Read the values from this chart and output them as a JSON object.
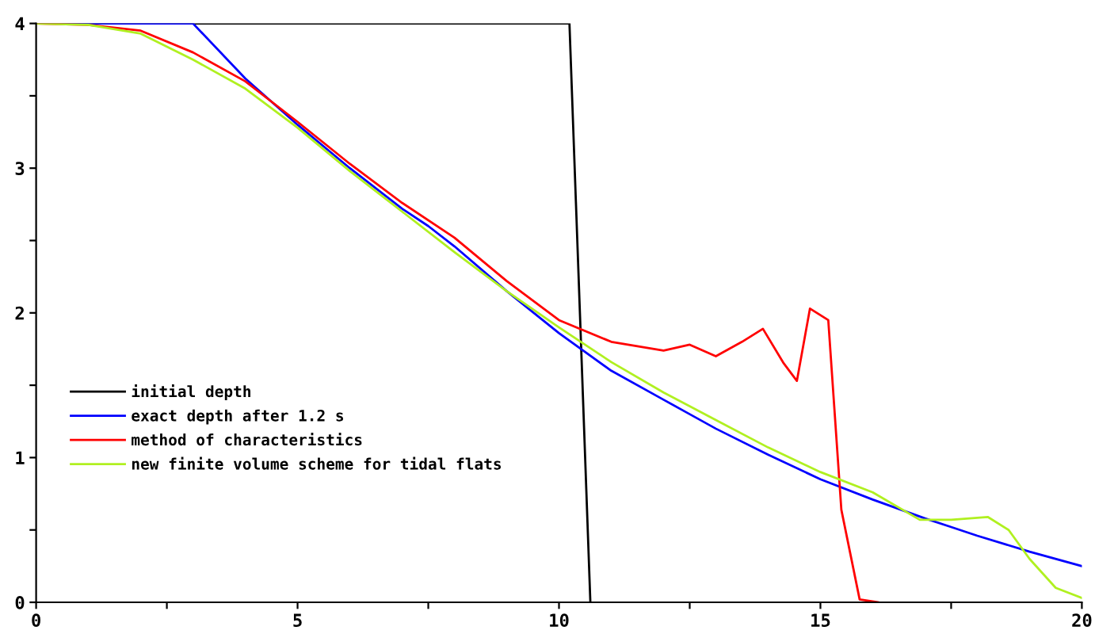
{
  "chart_data": {
    "type": "line",
    "xlim": [
      0,
      20
    ],
    "ylim": [
      0,
      4
    ],
    "xticks": [
      0,
      {
        "value": 2.5,
        "label": null
      },
      5,
      {
        "value": 7.5,
        "label": null
      },
      10,
      {
        "value": 12.5,
        "label": null
      },
      15,
      {
        "value": 17.5,
        "label": null
      },
      20
    ],
    "yticks": [
      0,
      {
        "value": 0.5,
        "label": null
      },
      1,
      {
        "value": 1.5,
        "label": null
      },
      2,
      {
        "value": 2.5,
        "label": null
      },
      3,
      {
        "value": 3.5,
        "label": null
      },
      4
    ],
    "grid": false,
    "legend": "bottom left",
    "marker": "none",
    "line_style": "solid",
    "series": [
      {
        "name": "initial depth",
        "color": "#000000",
        "x": [
          0,
          10.2,
          10.6
        ],
        "values": [
          4,
          4,
          0
        ]
      },
      {
        "name": "exact depth after 1.2 s",
        "color": "#0000ff",
        "x": [
          0,
          3,
          4,
          5,
          6,
          7,
          7.5,
          8,
          9,
          10,
          11,
          12,
          12.5,
          13,
          14,
          15,
          16,
          17,
          17.5,
          18,
          19,
          20
        ],
        "values": [
          4,
          4,
          3.62,
          3.3,
          3.0,
          2.72,
          2.6,
          2.46,
          2.15,
          1.86,
          1.6,
          1.4,
          1.3,
          1.2,
          1.02,
          0.85,
          0.71,
          0.58,
          0.52,
          0.46,
          0.35,
          0.25
        ]
      },
      {
        "name": "method of characteristics",
        "color": "#ff0000",
        "x": [
          0,
          1,
          2,
          3,
          4,
          5,
          6,
          7,
          8,
          9,
          10,
          11,
          12,
          12.5,
          13,
          13.5,
          13.9,
          14.3,
          14.55,
          14.8,
          15.15,
          15.4,
          15.75,
          16.1
        ],
        "values": [
          4,
          3.99,
          3.95,
          3.8,
          3.6,
          3.32,
          3.03,
          2.76,
          2.52,
          2.22,
          1.95,
          1.8,
          1.74,
          1.78,
          1.7,
          1.8,
          1.89,
          1.65,
          1.53,
          2.03,
          1.95,
          0.64,
          0.02,
          0.0
        ]
      },
      {
        "name": "new finite volume scheme for tidal flats",
        "color": "#b0f020",
        "x": [
          0,
          1,
          2,
          3,
          4,
          5,
          6,
          7,
          8,
          9,
          10,
          11,
          12,
          13,
          14,
          15,
          16,
          16.9,
          17.5,
          18.2,
          18.6,
          19,
          19.5,
          20
        ],
        "values": [
          4,
          3.99,
          3.93,
          3.75,
          3.55,
          3.28,
          2.98,
          2.7,
          2.42,
          2.15,
          1.9,
          1.66,
          1.45,
          1.26,
          1.07,
          0.9,
          0.76,
          0.57,
          0.57,
          0.59,
          0.5,
          0.3,
          0.1,
          0.03
        ]
      }
    ]
  }
}
